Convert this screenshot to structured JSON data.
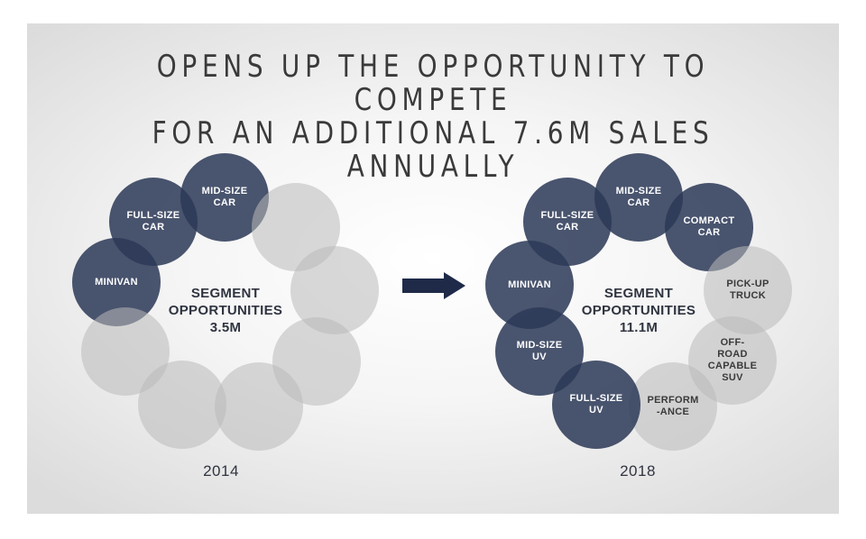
{
  "title": {
    "line1": "OPENS UP THE OPPORTUNITY TO COMPETE",
    "line2": "FOR AN ADDITIONAL 7.6M SALES ANNUALLY"
  },
  "diagram_2014": {
    "year": "2014",
    "center_label": "SEGMENT\nOPPORTUNITIES\n3.5M",
    "segments": [
      {
        "label": "MINIVAN",
        "active": true
      },
      {
        "label": "FULL-SIZE\nCAR",
        "active": true
      },
      {
        "label": "MID-SIZE\nCAR",
        "active": true
      },
      {
        "label": "",
        "active": false
      },
      {
        "label": "",
        "active": false
      },
      {
        "label": "",
        "active": false
      },
      {
        "label": "",
        "active": false
      },
      {
        "label": "",
        "active": false
      },
      {
        "label": "",
        "active": false
      }
    ]
  },
  "diagram_2018": {
    "year": "2018",
    "center_label": "SEGMENT\nOPPORTUNITIES\n11.1M",
    "segments": [
      {
        "label": "MINIVAN",
        "active": true
      },
      {
        "label": "FULL-SIZE\nCAR",
        "active": true
      },
      {
        "label": "MID-SIZE\nCAR",
        "active": true
      },
      {
        "label": "COMPACT\nCAR",
        "active": true
      },
      {
        "label": "PICK-UP\nTRUCK",
        "active": false
      },
      {
        "label": "OFF-\nROAD\nCAPABLE\nSUV",
        "active": false
      },
      {
        "label": "PERFORM\n-ANCE",
        "active": false
      },
      {
        "label": "FULL-SIZE\nUV",
        "active": true
      },
      {
        "label": "MID-SIZE\nUV",
        "active": true
      }
    ]
  },
  "colors": {
    "active": "#2c3957",
    "inactive": "#bababa",
    "arrow": "#1e2a48"
  }
}
